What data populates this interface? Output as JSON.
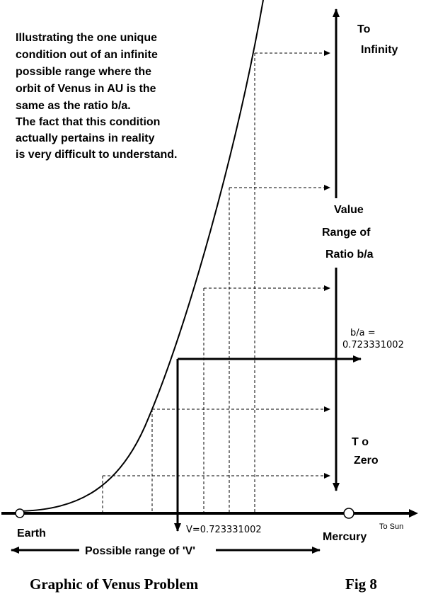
{
  "description_lines": [
    "Illustrating the one unique",
    "condition out of an infinite",
    "possible range where the",
    "orbit of Venus in AU is the",
    "same as the ratio b/a.",
    "The fact that this condition",
    "actually pertains in reality",
    "is very difficult to understand."
  ],
  "labels": {
    "to": "To",
    "infinity": "Infinity",
    "value": "Value",
    "range_of": "Range of",
    "ratio_ba": "Ratio b/a",
    "ba_equals": "b/a =",
    "ba_value": "0.723331002",
    "to_zero_t": "T o",
    "zero": "Zero",
    "earth": "Earth",
    "mercury": "Mercury",
    "to_sun": "To Sun",
    "v_value": "V=0.723331002",
    "possible_range": "Possible range of 'V'"
  },
  "footer": {
    "title": "Graphic of Venus Problem",
    "fig": "Fig 8"
  },
  "colors": {
    "ink": "#000000",
    "background": "#ffffff"
  }
}
